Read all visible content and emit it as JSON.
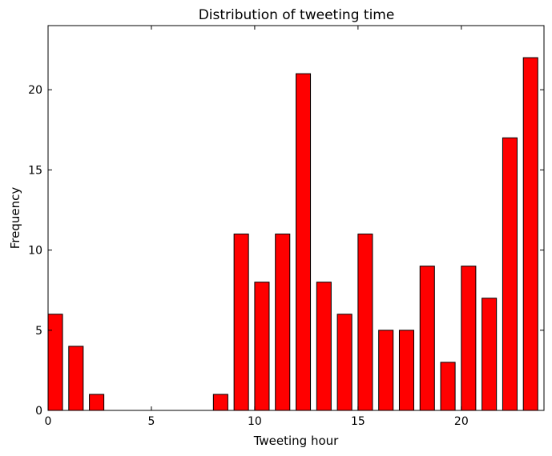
{
  "chart_data": {
    "type": "bar",
    "title": "Distribution of tweeting time",
    "xlabel": "Tweeting hour",
    "ylabel": "Frequency",
    "x": [
      0,
      1,
      2,
      3,
      4,
      5,
      6,
      7,
      8,
      9,
      10,
      11,
      12,
      13,
      14,
      15,
      16,
      17,
      18,
      19,
      20,
      21,
      22,
      23
    ],
    "values": [
      6,
      4,
      1,
      0,
      0,
      0,
      0,
      0,
      1,
      11,
      8,
      11,
      21,
      8,
      6,
      11,
      5,
      5,
      9,
      3,
      9,
      7,
      17,
      22
    ],
    "xlim": [
      0,
      24
    ],
    "ylim": [
      0,
      24
    ],
    "xticks": [
      0,
      5,
      10,
      15,
      20
    ],
    "yticks": [
      0,
      5,
      10,
      15,
      20
    ],
    "bar_color": "#ff0000",
    "edge_color": "#000000",
    "grid": false,
    "legend": "none"
  }
}
